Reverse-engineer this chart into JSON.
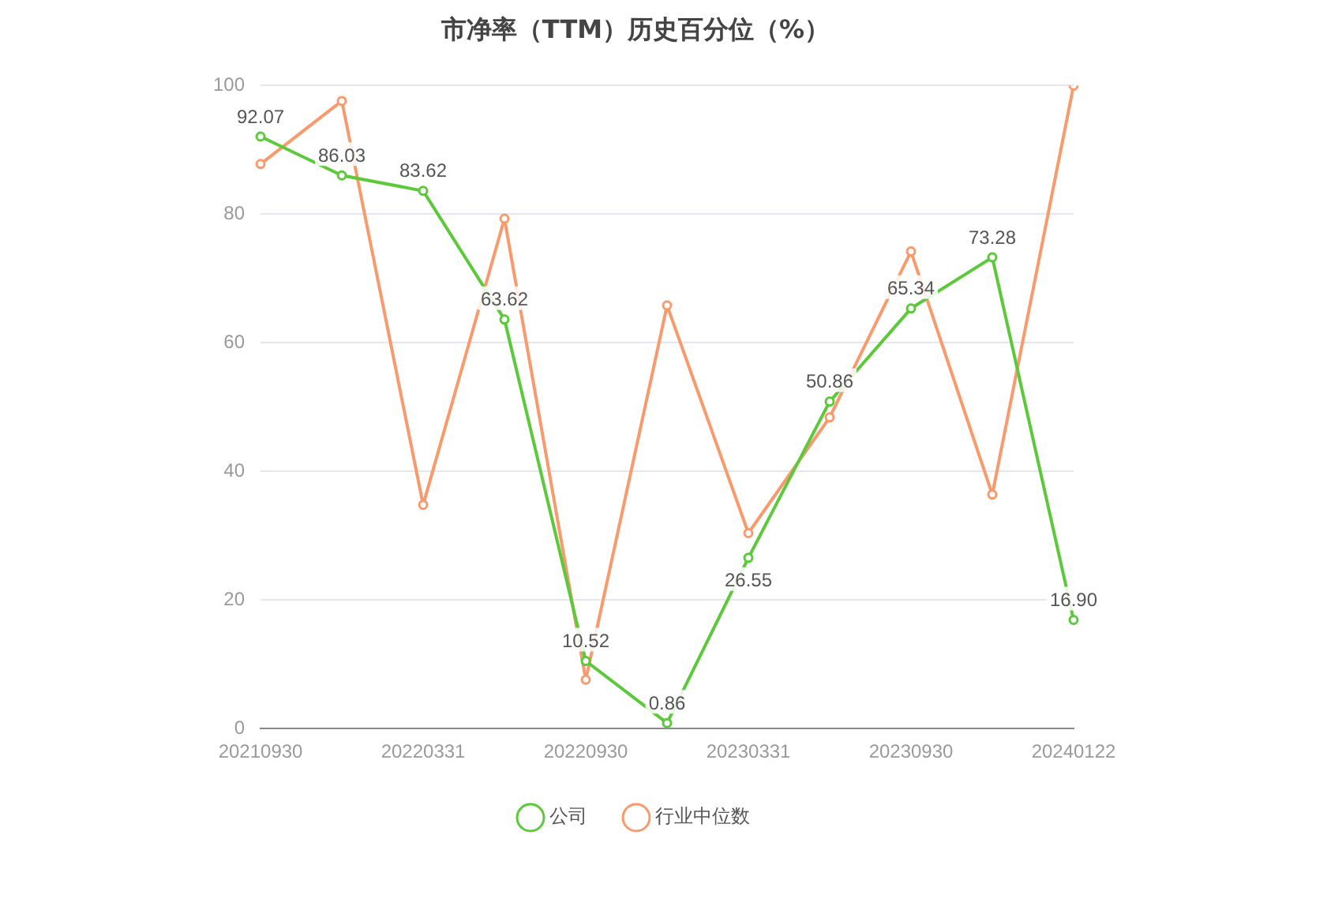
{
  "chart_data": {
    "type": "line",
    "title": "市净率（TTM）历史百分位（%）",
    "categories": [
      "20210930",
      null,
      "20220331",
      null,
      "20220930",
      null,
      "20230331",
      null,
      "20230930",
      null,
      "20240122"
    ],
    "series": [
      {
        "name": "公司",
        "color": "#5cc93a",
        "values": [
          92.07,
          86.03,
          83.62,
          63.62,
          10.52,
          0.86,
          26.55,
          50.86,
          65.34,
          73.28,
          16.9
        ],
        "value_labels": [
          "92.07",
          "86.03",
          "83.62",
          "63.62",
          "10.52",
          "0.86",
          "26.55",
          "50.86",
          "65.34",
          "73.28",
          "16.90"
        ]
      },
      {
        "name": "行业中位数",
        "color": "#f89a6c",
        "values": [
          87.8,
          97.6,
          34.8,
          79.3,
          7.6,
          65.8,
          30.4,
          48.4,
          74.2,
          36.4,
          100
        ]
      }
    ],
    "ylim": [
      0,
      100
    ],
    "yticks": [
      0,
      20,
      40,
      60,
      80,
      100
    ],
    "grid": "y",
    "legend": "bottom",
    "marker": "circle",
    "line_style": "solid"
  }
}
